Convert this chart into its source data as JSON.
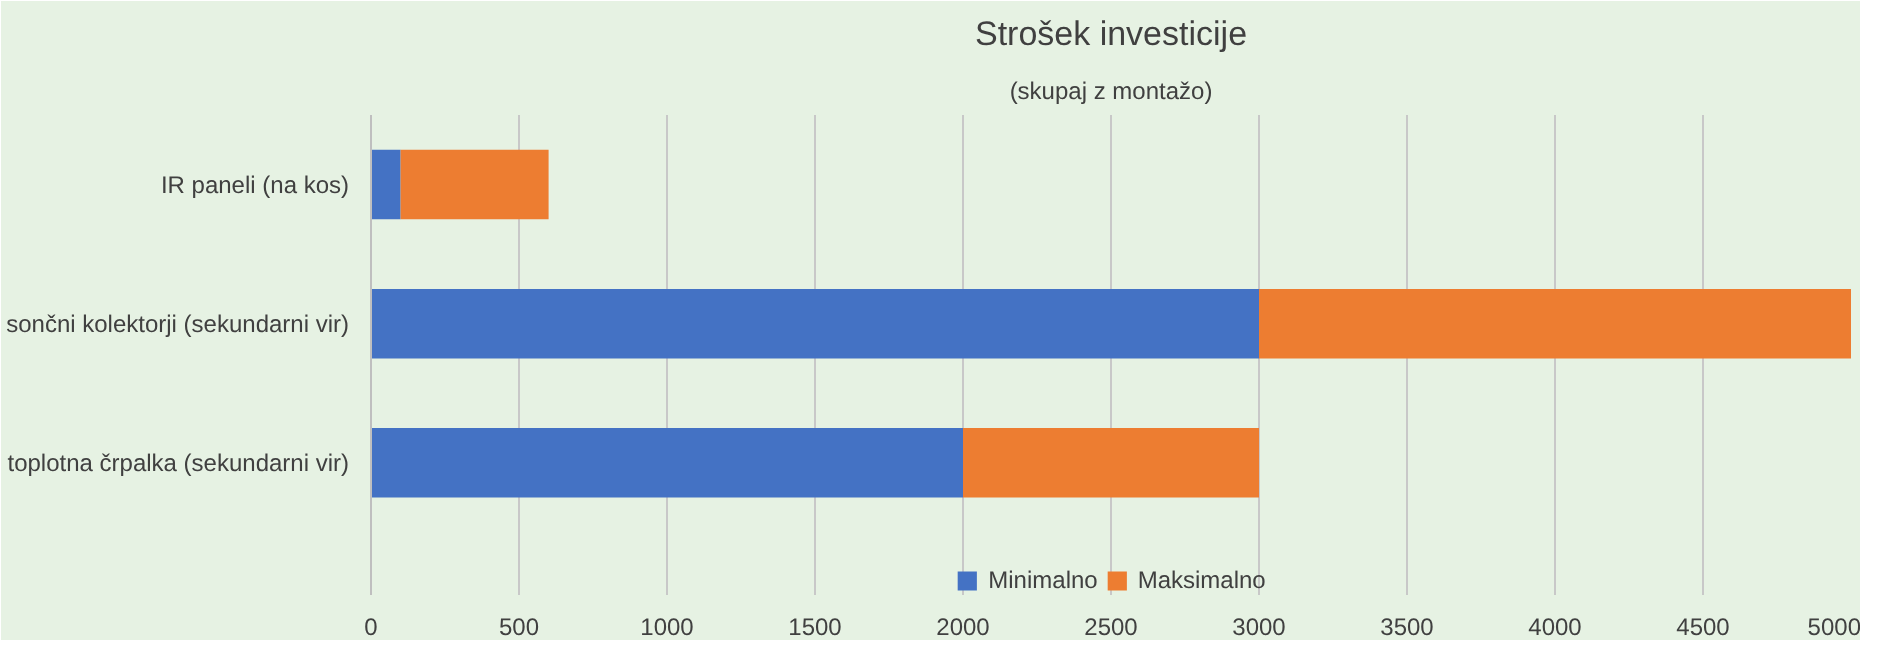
{
  "chart_data": {
    "type": "bar",
    "title": "Strošek investicije",
    "subtitle": "(skupaj z montažo)",
    "orientation": "horizontal",
    "stacked": true,
    "categories": [
      "IR paneli (na kos)",
      "sončni kolektorji (sekundarni vir)",
      "toplotna črpalka (sekundarni vir)"
    ],
    "series": [
      {
        "name": "Minimalno",
        "color": "#4472c4",
        "values": [
          100,
          3000,
          2000
        ]
      },
      {
        "name": "Maksimalno",
        "color": "#ed7d31",
        "values": [
          500,
          2000,
          1000
        ]
      }
    ],
    "xlim": [
      0,
      5000
    ],
    "xticks": [
      0,
      500,
      1000,
      1500,
      2000,
      2500,
      3000,
      3500,
      4000,
      4500,
      5000
    ],
    "grid": "x",
    "legend": "bottom"
  }
}
